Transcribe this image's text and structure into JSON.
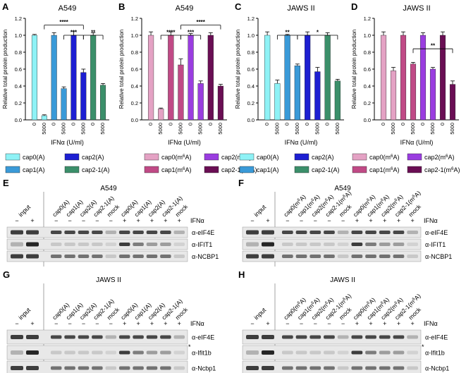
{
  "colors": {
    "cap0A": "#8ef2f6",
    "cap1A": "#3a9ad8",
    "cap2A": "#1d1fd2",
    "cap21A": "#3b8f6a",
    "cap0m6A": "#e4a2c4",
    "cap1m6A": "#c04a86",
    "cap2m6A": "#9a3de0",
    "cap21m6A": "#6a0e54"
  },
  "chart_data": [
    {
      "panel": "A",
      "type": "bar",
      "title": "A549",
      "ylabel": "Relative total protein production",
      "xlabel": "IFNα (U/ml)",
      "ylim": [
        0,
        1.2
      ],
      "yticks": [
        "0.0",
        "0.2",
        "0.4",
        "0.6",
        "0.8",
        "1.0",
        "1.2"
      ],
      "x": [
        "0",
        "5000",
        "0",
        "5000",
        "0",
        "5000",
        "0",
        "5000"
      ],
      "values": [
        1.0,
        0.05,
        1.0,
        0.37,
        1.0,
        0.56,
        1.0,
        0.41
      ],
      "errors": [
        0.01,
        0.01,
        0.03,
        0.02,
        0.05,
        0.04,
        0.03,
        0.02
      ],
      "series": [
        "cap0A",
        "cap0A",
        "cap1A",
        "cap1A",
        "cap2A",
        "cap2A",
        "cap21A",
        "cap21A"
      ],
      "sig": [
        {
          "from": 1,
          "to": 5,
          "label": "****",
          "y": 1.12
        },
        {
          "from": 3,
          "to": 5,
          "label": "***",
          "y": 1.0
        },
        {
          "from": 5,
          "to": 7,
          "label": "**",
          "y": 1.0
        }
      ]
    },
    {
      "panel": "B",
      "type": "bar",
      "title": "A549",
      "ylabel": "Relative total protein production",
      "xlabel": "IFNα (U/ml)",
      "ylim": [
        0,
        1.2
      ],
      "yticks": [
        "0.0",
        "0.2",
        "0.4",
        "0.6",
        "0.8",
        "1.0",
        "1.2"
      ],
      "x": [
        "0",
        "5000",
        "0",
        "5000",
        "0",
        "5000",
        "0",
        "5000"
      ],
      "values": [
        1.0,
        0.13,
        1.0,
        0.65,
        1.0,
        0.43,
        1.0,
        0.4
      ],
      "errors": [
        0.04,
        0.01,
        0.04,
        0.07,
        0.02,
        0.03,
        0.03,
        0.02
      ],
      "series": [
        "cap0m6A",
        "cap0m6A",
        "cap1m6A",
        "cap1m6A",
        "cap2m6A",
        "cap2m6A",
        "cap21m6A",
        "cap21m6A"
      ],
      "sig": [
        {
          "from": 1,
          "to": 3,
          "label": "****",
          "y": 1.0
        },
        {
          "from": 3,
          "to": 7,
          "label": "****",
          "y": 1.12
        },
        {
          "from": 3,
          "to": 5,
          "label": "***",
          "y": 1.0
        }
      ]
    },
    {
      "panel": "C",
      "type": "bar",
      "title": "JAWS II",
      "ylabel": "Relative total protein production",
      "xlabel": "IFNα (U/ml)",
      "ylim": [
        0,
        1.2
      ],
      "yticks": [
        "0.0",
        "0.2",
        "0.4",
        "0.6",
        "0.8",
        "1.0",
        "1.2"
      ],
      "x": [
        "0",
        "5000",
        "0",
        "5000",
        "0",
        "5000",
        "0",
        "5000"
      ],
      "values": [
        1.0,
        0.43,
        1.0,
        0.64,
        1.0,
        0.57,
        1.0,
        0.46
      ],
      "errors": [
        0.04,
        0.04,
        0.01,
        0.02,
        0.04,
        0.05,
        0.03,
        0.02
      ],
      "series": [
        "cap0A",
        "cap0A",
        "cap1A",
        "cap1A",
        "cap2A",
        "cap2A",
        "cap21A",
        "cap21A"
      ],
      "sig": [
        {
          "from": 1,
          "to": 3,
          "label": "**",
          "y": 1.0
        },
        {
          "from": 3,
          "to": 7,
          "label": "*",
          "y": 1.0
        }
      ]
    },
    {
      "panel": "D",
      "type": "bar",
      "title": "JAWS II",
      "ylabel": "Relative total protein production",
      "xlabel": "IFNα (U/ml)",
      "ylim": [
        0,
        1.2
      ],
      "yticks": [
        "0.0",
        "0.2",
        "0.4",
        "0.6",
        "0.8",
        "1.0",
        "1.2"
      ],
      "x": [
        "0",
        "5000",
        "0",
        "5000",
        "0",
        "5000",
        "0",
        "5000"
      ],
      "values": [
        1.0,
        0.58,
        1.0,
        0.66,
        1.0,
        0.6,
        1.0,
        0.42
      ],
      "errors": [
        0.04,
        0.04,
        0.04,
        0.02,
        0.03,
        0.02,
        0.04,
        0.04
      ],
      "series": [
        "cap0m6A",
        "cap0m6A",
        "cap1m6A",
        "cap1m6A",
        "cap2m6A",
        "cap2m6A",
        "cap21m6A",
        "cap21m6A"
      ],
      "sig": [
        {
          "from": 3,
          "to": 7,
          "label": "**",
          "y": 0.84
        }
      ]
    }
  ],
  "legends": [
    {
      "panel": "AC",
      "items": [
        {
          "label": "cap0(A)",
          "color": "cap0A"
        },
        {
          "label": "cap2(A)",
          "color": "cap2A"
        },
        {
          "label": "cap1(A)",
          "color": "cap1A"
        },
        {
          "label": "cap2-1(A)",
          "color": "cap21A"
        }
      ]
    },
    {
      "panel": "BD",
      "items": [
        {
          "label": "cap0(m6A)",
          "color": "cap0m6A"
        },
        {
          "label": "cap2(m6A)",
          "color": "cap2m6A"
        },
        {
          "label": "cap1(m6A)",
          "color": "cap1m6A"
        },
        {
          "label": "cap2-1(m6A)",
          "color": "cap21m6A"
        }
      ]
    }
  ],
  "blots": [
    {
      "panel": "E",
      "title": "A549",
      "input": "input",
      "lanes": [
        "cap0(A)",
        "cap1(A)",
        "cap2(A)",
        "cap2-1(A)",
        "mock",
        "cap0(A)",
        "cap1(A)",
        "cap2(A)",
        "cap2-1(A)",
        "mock"
      ],
      "input_signs": [
        "−",
        "+"
      ],
      "signs": [
        "−",
        "−",
        "−",
        "−",
        "−",
        "+",
        "+",
        "+",
        "+",
        "+"
      ],
      "treatment": "IFNα",
      "rows": [
        "α-eIF4E",
        "α-IFIT1",
        "α-NCBP1"
      ]
    },
    {
      "panel": "F",
      "title": "A549",
      "input": "input",
      "lanes": [
        "cap0(m6A)",
        "cap1(m6A)",
        "cap2(m6A)",
        "cap2-1(m6A)",
        "mock",
        "cap0(m6A)",
        "cap1(m6A)",
        "cap2(m6A)",
        "cap2-1(m6A)",
        "mock"
      ],
      "input_signs": [
        "−",
        "+"
      ],
      "signs": [
        "−",
        "−",
        "−",
        "−",
        "−",
        "+",
        "+",
        "+",
        "+",
        "+"
      ],
      "treatment": "IFNα",
      "rows": [
        "α-eIF4E",
        "α-IFIT1",
        "α-NCBP1"
      ]
    },
    {
      "panel": "G",
      "title": "JAWS II",
      "input": "input",
      "lanes": [
        "cap0(A)",
        "cap1(A)",
        "cap2(A)",
        "cap2-1(A)",
        "mock",
        "cap0(A)",
        "cap1(A)",
        "cap2(A)",
        "cap2-1(A)",
        "mock"
      ],
      "input_signs": [
        "−",
        "+"
      ],
      "signs": [
        "−",
        "−",
        "−",
        "−",
        "−",
        "+",
        "+",
        "+",
        "+",
        "+"
      ],
      "treatment": "IFNα",
      "rows": [
        "α-eIF4E",
        "α-Ifit1b",
        "α-Ncbp1"
      ],
      "star": "*"
    },
    {
      "panel": "H",
      "title": "JAWS II",
      "input": "input",
      "lanes": [
        "cap0(m6A)",
        "cap1(m6A)",
        "cap2(m6A)",
        "cap2-1(m6A)",
        "mock",
        "cap0(m6A)",
        "cap1(m6A)",
        "cap2(m6A)",
        "cap2-1(m6A)",
        "mock"
      ],
      "input_signs": [
        "−",
        "+"
      ],
      "signs": [
        "−",
        "−",
        "−",
        "−",
        "−",
        "+",
        "+",
        "+",
        "+",
        "+"
      ],
      "treatment": "IFNα",
      "rows": [
        "α-eIF4E",
        "α-Ifit1b",
        "α-Ncbp1"
      ],
      "star": "*"
    }
  ]
}
